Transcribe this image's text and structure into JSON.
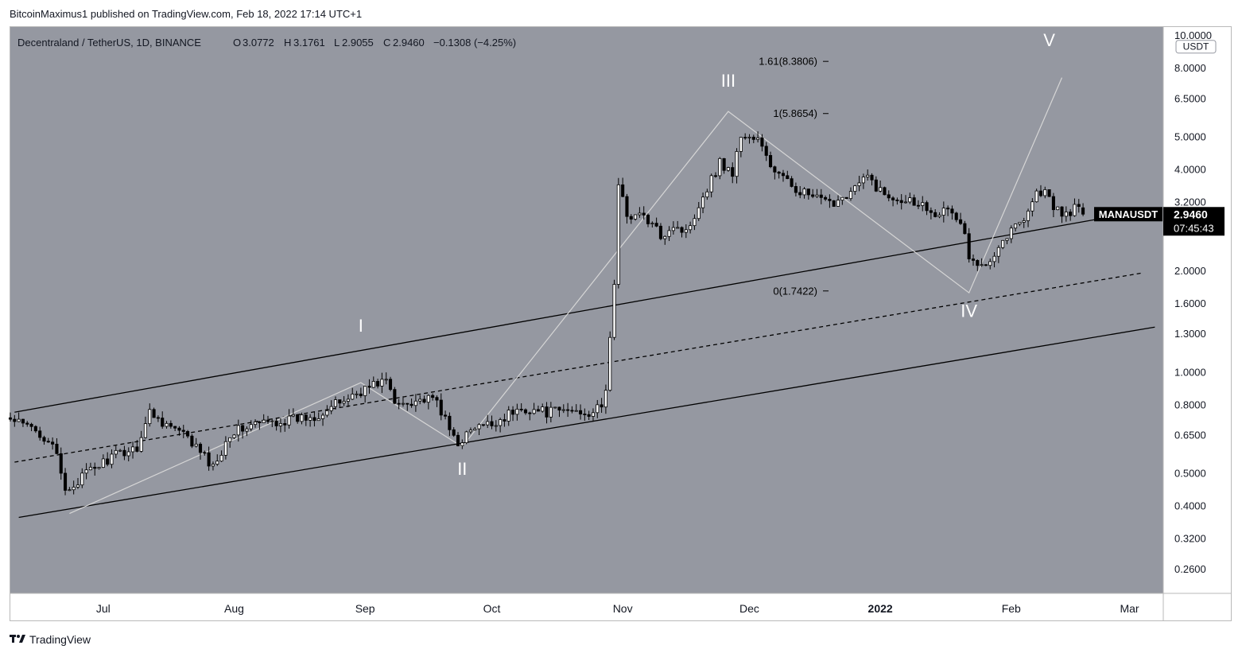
{
  "publisher_line": "BitcoinMaximus1 published on TradingView.com, Feb 18, 2022 17:14 UTC+1",
  "brand": {
    "logo_icon": "tradingview-logo-icon",
    "name": "TradingView"
  },
  "colors": {
    "plot_bg": "#9598a1",
    "up_body": "#ffffff",
    "down_body": "#000000",
    "wick": "#000000",
    "wave_line": "#d6d6d6",
    "label_bg": "#000000",
    "label_text": "#ffffff"
  },
  "chart_data": {
    "type": "candlestick",
    "y_scale": "log",
    "symbol_header": {
      "name": "Decentraland / TetherUS, 1D, BINANCE",
      "open_label": "O",
      "open": "3.0772",
      "high_label": "H",
      "high": "3.1761",
      "low_label": "L",
      "low": "2.9055",
      "close_label": "C",
      "close": "2.9460",
      "change": "−0.1308 (−4.25%)"
    },
    "ohlc_last": {
      "open": 3.0772,
      "high": 3.1761,
      "low": 2.9055,
      "close": 2.946
    },
    "currency_label": "USDT",
    "y_ticks": [
      "10.0000",
      "8.0000",
      "6.5000",
      "5.0000",
      "4.0000",
      "3.2000",
      "2.0000",
      "1.6000",
      "1.3000",
      "1.0000",
      "0.8000",
      "0.6500",
      "0.5000",
      "0.4000",
      "0.3200",
      "0.2600"
    ],
    "y_tick_values": [
      10,
      8,
      6.5,
      5,
      4,
      3.2,
      2,
      1.6,
      1.3,
      1,
      0.8,
      0.65,
      0.5,
      0.4,
      0.32,
      0.26
    ],
    "ylim": [
      0.22,
      10.6
    ],
    "x_ticks": [
      {
        "label": "Jul",
        "date": "2021-07-01",
        "bold": false
      },
      {
        "label": "Aug",
        "date": "2021-08-01",
        "bold": false
      },
      {
        "label": "Sep",
        "date": "2021-09-01",
        "bold": false
      },
      {
        "label": "Oct",
        "date": "2021-10-01",
        "bold": false
      },
      {
        "label": "Nov",
        "date": "2021-11-01",
        "bold": false
      },
      {
        "label": "Dec",
        "date": "2021-12-01",
        "bold": false
      },
      {
        "label": "2022",
        "date": "2022-01-01",
        "bold": true
      },
      {
        "label": "Feb",
        "date": "2022-02-01",
        "bold": false
      },
      {
        "label": "Mar",
        "date": "2022-03-01",
        "bold": false
      }
    ],
    "xlim": [
      "2021-06-09",
      "2022-03-09"
    ],
    "price_label": {
      "symbol": "MANAUSDT",
      "price": "2.9460",
      "countdown": "07:45:43"
    },
    "candles_keypoints": [
      [
        "2021-06-09",
        0.72
      ],
      [
        "2021-06-14",
        0.68
      ],
      [
        "2021-06-19",
        0.62
      ],
      [
        "2021-06-22",
        0.44
      ],
      [
        "2021-06-27",
        0.5
      ],
      [
        "2021-07-03",
        0.56
      ],
      [
        "2021-07-09",
        0.6
      ],
      [
        "2021-07-12",
        0.76
      ],
      [
        "2021-07-16",
        0.7
      ],
      [
        "2021-07-20",
        0.65
      ],
      [
        "2021-07-24",
        0.58
      ],
      [
        "2021-07-27",
        0.52
      ],
      [
        "2021-07-31",
        0.66
      ],
      [
        "2021-08-06",
        0.7
      ],
      [
        "2021-08-14",
        0.72
      ],
      [
        "2021-08-20",
        0.74
      ],
      [
        "2021-08-25",
        0.8
      ],
      [
        "2021-08-31",
        0.88
      ],
      [
        "2021-09-04",
        0.93
      ],
      [
        "2021-09-06",
        0.95
      ],
      [
        "2021-09-08",
        0.8
      ],
      [
        "2021-09-13",
        0.83
      ],
      [
        "2021-09-18",
        0.82
      ],
      [
        "2021-09-21",
        0.67
      ],
      [
        "2021-09-23",
        0.62
      ],
      [
        "2021-09-27",
        0.68
      ],
      [
        "2021-10-01",
        0.7
      ],
      [
        "2021-10-05",
        0.75
      ],
      [
        "2021-10-09",
        0.78
      ],
      [
        "2021-10-14",
        0.76
      ],
      [
        "2021-10-20",
        0.77
      ],
      [
        "2021-10-24",
        0.76
      ],
      [
        "2021-10-27",
        0.78
      ],
      [
        "2021-10-28",
        0.9
      ],
      [
        "2021-10-29",
        1.25
      ],
      [
        "2021-10-30",
        1.85
      ],
      [
        "2021-10-31",
        3.55
      ],
      [
        "2021-11-02",
        2.95
      ],
      [
        "2021-11-06",
        2.9
      ],
      [
        "2021-11-10",
        2.55
      ],
      [
        "2021-11-13",
        2.75
      ],
      [
        "2021-11-16",
        2.6
      ],
      [
        "2021-11-20",
        3.35
      ],
      [
        "2021-11-24",
        4.2
      ],
      [
        "2021-11-27",
        3.9
      ],
      [
        "2021-11-29",
        5.05
      ],
      [
        "2021-12-03",
        4.9
      ],
      [
        "2021-12-06",
        4.1
      ],
      [
        "2021-12-10",
        3.65
      ],
      [
        "2021-12-15",
        3.35
      ],
      [
        "2021-12-20",
        3.15
      ],
      [
        "2021-12-25",
        3.45
      ],
      [
        "2021-12-29",
        3.8
      ],
      [
        "2022-01-02",
        3.35
      ],
      [
        "2022-01-06",
        3.3
      ],
      [
        "2022-01-10",
        3.2
      ],
      [
        "2022-01-14",
        3.0
      ],
      [
        "2022-01-18",
        3.0
      ],
      [
        "2022-01-21",
        2.6
      ],
      [
        "2022-01-22",
        2.15
      ],
      [
        "2022-01-24",
        2.05
      ],
      [
        "2022-01-27",
        2.2
      ],
      [
        "2022-01-31",
        2.55
      ],
      [
        "2022-02-04",
        2.9
      ],
      [
        "2022-02-07",
        3.4
      ],
      [
        "2022-02-09",
        3.45
      ],
      [
        "2022-02-11",
        3.05
      ],
      [
        "2022-02-14",
        2.95
      ],
      [
        "2022-02-17",
        3.1
      ],
      [
        "2022-02-18",
        2.946
      ]
    ],
    "channel": {
      "upper": [
        [
          "2021-06-10",
          0.76
        ],
        [
          "2022-02-25",
          2.9
        ]
      ],
      "middle": [
        [
          "2021-06-10",
          0.54
        ],
        [
          "2022-03-04",
          1.97
        ]
      ],
      "lower": [
        [
          "2021-06-11",
          0.37
        ],
        [
          "2022-03-07",
          1.36
        ]
      ]
    },
    "wave_path": [
      [
        "2021-06-23",
        0.38
      ],
      [
        "2021-08-31",
        0.93
      ],
      [
        "2021-09-24",
        0.6
      ],
      [
        "2021-11-26",
        5.95
      ],
      [
        "2022-01-22",
        1.72
      ],
      [
        "2022-02-13",
        7.5
      ]
    ],
    "wave_labels": [
      {
        "text": "I",
        "date": "2021-08-31",
        "price": 1.32
      },
      {
        "text": "II",
        "date": "2021-09-24",
        "price": 0.495
      },
      {
        "text": "III",
        "date": "2021-11-26",
        "price": 7.05
      },
      {
        "text": "IV",
        "date": "2022-01-22",
        "price": 1.46
      },
      {
        "text": "V",
        "date": "2022-02-10",
        "price": 9.3
      }
    ],
    "fib_levels": [
      {
        "text": "1.61(8.3806)",
        "value": 8.3806
      },
      {
        "text": "1(5.8654)",
        "value": 5.8654
      },
      {
        "text": "0(1.7422)",
        "value": 1.7422
      }
    ]
  }
}
